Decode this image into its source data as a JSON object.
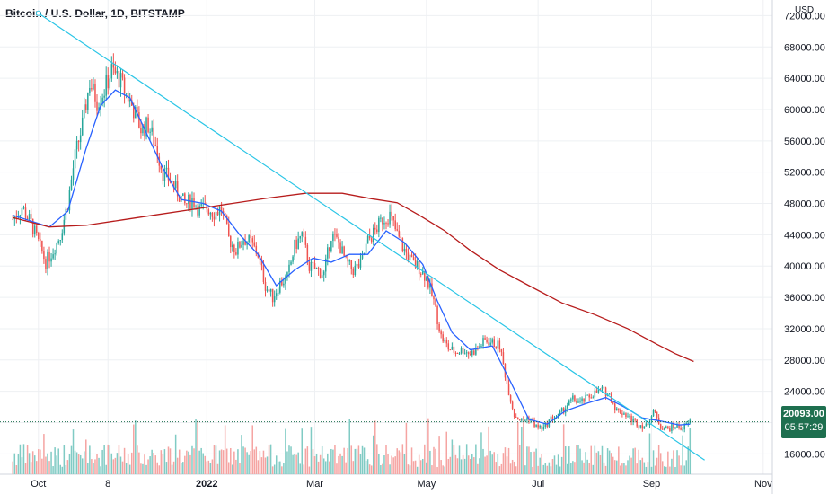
{
  "header": {
    "title": "Bitcoin / U.S. Dollar, 1D, BITSTAMP"
  },
  "axis": {
    "currency": "USD"
  },
  "last_price": {
    "value": "20093.00",
    "countdown": "05:57:29",
    "color": "#1e6f4f"
  },
  "colors": {
    "up": "#26a69a",
    "down": "#ef5350",
    "sma_fast": "#2962ff",
    "sma_slow": "#b71c1c",
    "trendline": "#29c5e6",
    "vol_up": "#80cbc4",
    "vol_down": "#f5a4a2"
  },
  "chart_data": {
    "type": "candlestick",
    "yticks": [
      16000,
      20000,
      24000,
      28000,
      32000,
      36000,
      40000,
      44000,
      48000,
      52000,
      56000,
      60000,
      64000,
      68000,
      72000
    ],
    "ytick_labels": [
      "16000.00",
      "20000.00",
      "24000.00",
      "28000.00",
      "32000.00",
      "36000.00",
      "40000.00",
      "44000.00",
      "48000.00",
      "52000.00",
      "56000.00",
      "60000.00",
      "64000.00",
      "68000.00",
      "72000.00"
    ],
    "ylim": [
      13400,
      74000
    ],
    "xticks": [
      {
        "label": "Oct",
        "day": 14
      },
      {
        "label": "8",
        "day": 52
      },
      {
        "label": "2022",
        "day": 106
      },
      {
        "label": "Mar",
        "day": 165
      },
      {
        "label": "May",
        "day": 226
      },
      {
        "label": "Jul",
        "day": 287
      },
      {
        "label": "Sep",
        "day": 349
      },
      {
        "label": "Nov",
        "day": 410
      }
    ],
    "xlim": [
      -7,
      415
    ],
    "close_points": [
      [
        0,
        46000
      ],
      [
        5,
        47500
      ],
      [
        10,
        45500
      ],
      [
        14,
        43000
      ],
      [
        18,
        40500
      ],
      [
        22,
        42000
      ],
      [
        26,
        44000
      ],
      [
        30,
        48000
      ],
      [
        34,
        54000
      ],
      [
        38,
        58000
      ],
      [
        42,
        63500
      ],
      [
        46,
        61000
      ],
      [
        50,
        62500
      ],
      [
        54,
        65000
      ],
      [
        58,
        64000
      ],
      [
        62,
        62000
      ],
      [
        66,
        60000
      ],
      [
        70,
        57500
      ],
      [
        74,
        58000
      ],
      [
        78,
        55500
      ],
      [
        82,
        52000
      ],
      [
        86,
        51000
      ],
      [
        90,
        49500
      ],
      [
        94,
        47800
      ],
      [
        98,
        48500
      ],
      [
        102,
        47200
      ],
      [
        106,
        47500
      ],
      [
        110,
        46800
      ],
      [
        114,
        47300
      ],
      [
        118,
        43500
      ],
      [
        122,
        42000
      ],
      [
        126,
        43500
      ],
      [
        130,
        43000
      ],
      [
        134,
        41500
      ],
      [
        138,
        37500
      ],
      [
        142,
        36000
      ],
      [
        146,
        37800
      ],
      [
        150,
        38500
      ],
      [
        154,
        42500
      ],
      [
        158,
        44000
      ],
      [
        162,
        40000
      ],
      [
        166,
        39500
      ],
      [
        170,
        39000
      ],
      [
        174,
        44000
      ],
      [
        178,
        43000
      ],
      [
        182,
        40500
      ],
      [
        186,
        39500
      ],
      [
        190,
        40200
      ],
      [
        194,
        43200
      ],
      [
        198,
        44500
      ],
      [
        202,
        46000
      ],
      [
        206,
        46500
      ],
      [
        210,
        44000
      ],
      [
        214,
        42000
      ],
      [
        218,
        40500
      ],
      [
        222,
        39800
      ],
      [
        226,
        38500
      ],
      [
        230,
        35500
      ],
      [
        234,
        31000
      ],
      [
        238,
        29500
      ],
      [
        242,
        29000
      ],
      [
        246,
        29300
      ],
      [
        250,
        28800
      ],
      [
        254,
        29500
      ],
      [
        258,
        30500
      ],
      [
        262,
        30200
      ],
      [
        266,
        29800
      ],
      [
        270,
        25000
      ],
      [
        274,
        21000
      ],
      [
        278,
        20200
      ],
      [
        282,
        20600
      ],
      [
        286,
        19500
      ],
      [
        290,
        19300
      ],
      [
        294,
        20500
      ],
      [
        298,
        20800
      ],
      [
        302,
        22000
      ],
      [
        306,
        23000
      ],
      [
        310,
        22500
      ],
      [
        314,
        23200
      ],
      [
        318,
        23800
      ],
      [
        322,
        24200
      ],
      [
        326,
        23500
      ],
      [
        330,
        21600
      ],
      [
        334,
        21200
      ],
      [
        338,
        20400
      ],
      [
        342,
        19800
      ],
      [
        346,
        19500
      ],
      [
        350,
        21500
      ],
      [
        354,
        19500
      ],
      [
        358,
        19200
      ],
      [
        362,
        19600
      ],
      [
        366,
        19300
      ],
      [
        370,
        20093
      ]
    ],
    "volume_hint": "daily volume histogram under price panel",
    "series": [
      {
        "name": "",
        "kind": "sma_fast",
        "points": [
          [
            0,
            46500
          ],
          [
            20,
            45000
          ],
          [
            30,
            47000
          ],
          [
            40,
            55000
          ],
          [
            48,
            60500
          ],
          [
            56,
            62500
          ],
          [
            64,
            61500
          ],
          [
            72,
            57500
          ],
          [
            82,
            52500
          ],
          [
            92,
            48500
          ],
          [
            104,
            48000
          ],
          [
            114,
            47000
          ],
          [
            124,
            44000
          ],
          [
            134,
            41500
          ],
          [
            144,
            37500
          ],
          [
            154,
            39500
          ],
          [
            164,
            41000
          ],
          [
            174,
            40500
          ],
          [
            184,
            41500
          ],
          [
            194,
            41500
          ],
          [
            204,
            44500
          ],
          [
            214,
            43000
          ],
          [
            224,
            40200
          ],
          [
            232,
            35500
          ],
          [
            240,
            31500
          ],
          [
            250,
            29300
          ],
          [
            262,
            29800
          ],
          [
            272,
            25200
          ],
          [
            282,
            20400
          ],
          [
            292,
            19800
          ],
          [
            302,
            21500
          ],
          [
            314,
            22500
          ],
          [
            324,
            23200
          ],
          [
            334,
            22000
          ],
          [
            344,
            20600
          ],
          [
            354,
            20200
          ],
          [
            364,
            19700
          ],
          [
            370,
            19800
          ]
        ]
      },
      {
        "name": "",
        "kind": "sma_slow",
        "points": [
          [
            0,
            46200
          ],
          [
            20,
            45000
          ],
          [
            40,
            45200
          ],
          [
            60,
            45900
          ],
          [
            80,
            46600
          ],
          [
            100,
            47300
          ],
          [
            120,
            48000
          ],
          [
            140,
            48700
          ],
          [
            160,
            49300
          ],
          [
            180,
            49300
          ],
          [
            196,
            48600
          ],
          [
            210,
            48100
          ],
          [
            222,
            46500
          ],
          [
            236,
            44500
          ],
          [
            250,
            42000
          ],
          [
            266,
            39500
          ],
          [
            282,
            37500
          ],
          [
            300,
            35300
          ],
          [
            318,
            33800
          ],
          [
            336,
            32000
          ],
          [
            352,
            30000
          ],
          [
            362,
            28800
          ],
          [
            372,
            27800
          ]
        ]
      },
      {
        "name": "",
        "kind": "trendline",
        "points": [
          [
            14,
            72300
          ],
          [
            378,
            15200
          ]
        ]
      }
    ]
  }
}
